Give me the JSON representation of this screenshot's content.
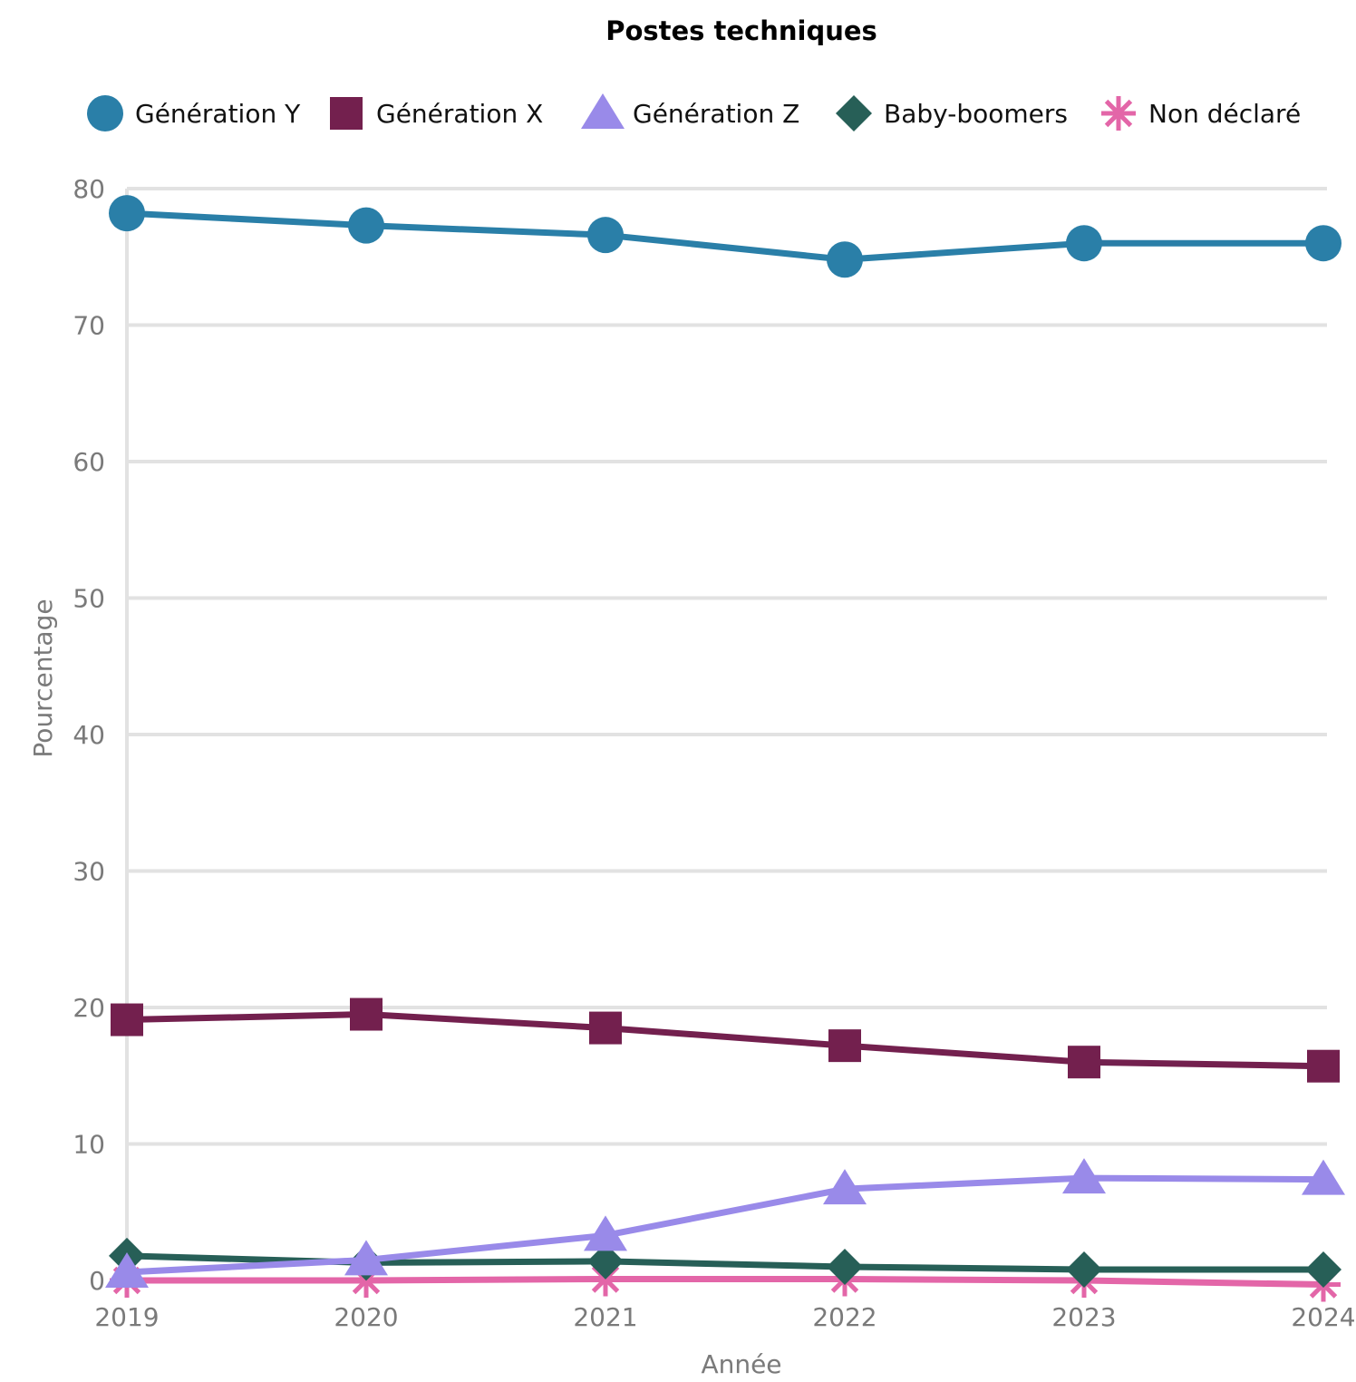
{
  "chart_data": {
    "type": "line",
    "title": "Postes techniques",
    "xlabel": "Année",
    "ylabel": "Pourcentage",
    "x": [
      "2019",
      "2020",
      "2021",
      "2022",
      "2023",
      "2024"
    ],
    "ylim": [
      0,
      80
    ],
    "yticks": [
      "0",
      "10",
      "20",
      "30",
      "40",
      "50",
      "60",
      "70",
      "80"
    ],
    "grid": true,
    "legend_position": "top",
    "series": [
      {
        "name": "Génération Y",
        "marker": "circle",
        "color": "#2a7fa8",
        "values": [
          78.2,
          77.3,
          76.6,
          74.8,
          76.0,
          76.0
        ]
      },
      {
        "name": "Génération X",
        "marker": "square",
        "color": "#73204e",
        "values": [
          19.1,
          19.5,
          18.5,
          17.2,
          16.0,
          15.7
        ]
      },
      {
        "name": "Génération Z",
        "marker": "triangle",
        "color": "#998ae9",
        "values": [
          0.6,
          1.5,
          3.3,
          6.7,
          7.5,
          7.4
        ]
      },
      {
        "name": "Baby-boomers",
        "marker": "diamond",
        "color": "#275f57",
        "values": [
          1.8,
          1.3,
          1.4,
          1.0,
          0.8,
          0.8
        ]
      },
      {
        "name": "Non déclaré",
        "marker": "asterisk",
        "color": "#e366a8",
        "values": [
          0.0,
          0.0,
          0.1,
          0.1,
          0.0,
          -0.3
        ]
      }
    ]
  }
}
